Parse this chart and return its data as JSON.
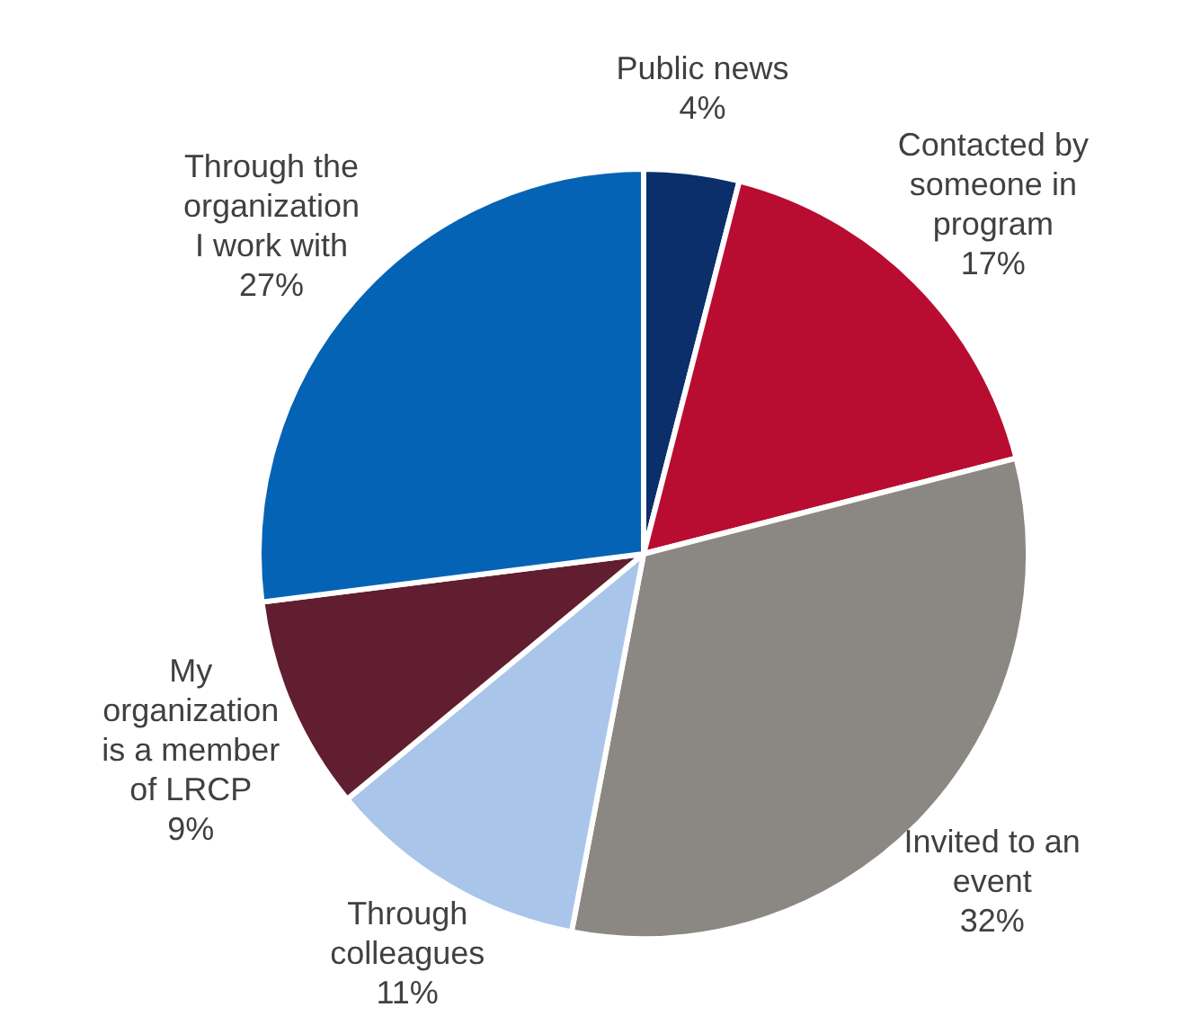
{
  "chart_data": {
    "type": "pie",
    "categories": [
      "Public news",
      "Contacted by someone in program",
      "Invited to an event",
      "Through colleagues",
      "My organization is a member of LRCP",
      "Through the organization I work with"
    ],
    "values": [
      4,
      17,
      32,
      11,
      9,
      27
    ],
    "colors": [
      "#0a2f6b",
      "#b80d31",
      "#8b8782",
      "#a9c5ea",
      "#611e30",
      "#0563b5"
    ],
    "value_labels": [
      "4%",
      "17%",
      "32%",
      "11%",
      "9%",
      "27%"
    ]
  }
}
